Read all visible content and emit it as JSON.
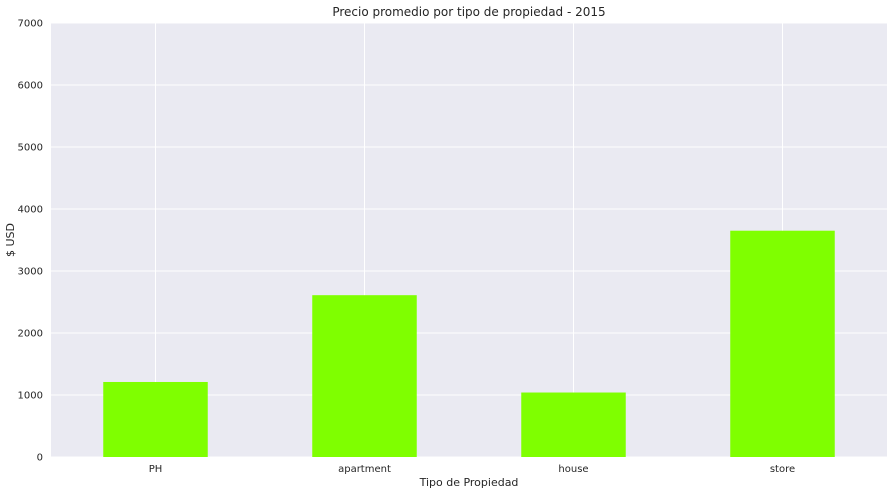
{
  "chart_data": {
    "type": "bar",
    "title": "Precio promedio por tipo de propiedad - 2015",
    "xlabel": "Tipo de Propiedad",
    "ylabel": "$ USD",
    "categories": [
      "PH",
      "apartment",
      "house",
      "store"
    ],
    "values": [
      1210,
      2610,
      1040,
      3650
    ],
    "ylim": [
      0,
      7000
    ],
    "yticks": [
      0,
      1000,
      2000,
      3000,
      4000,
      5000,
      6000,
      7000
    ],
    "grid": true,
    "legend": "none",
    "colors": {
      "bar": "#7fff00",
      "plot_background": "#eaeaf2",
      "grid": "#ffffff"
    }
  }
}
